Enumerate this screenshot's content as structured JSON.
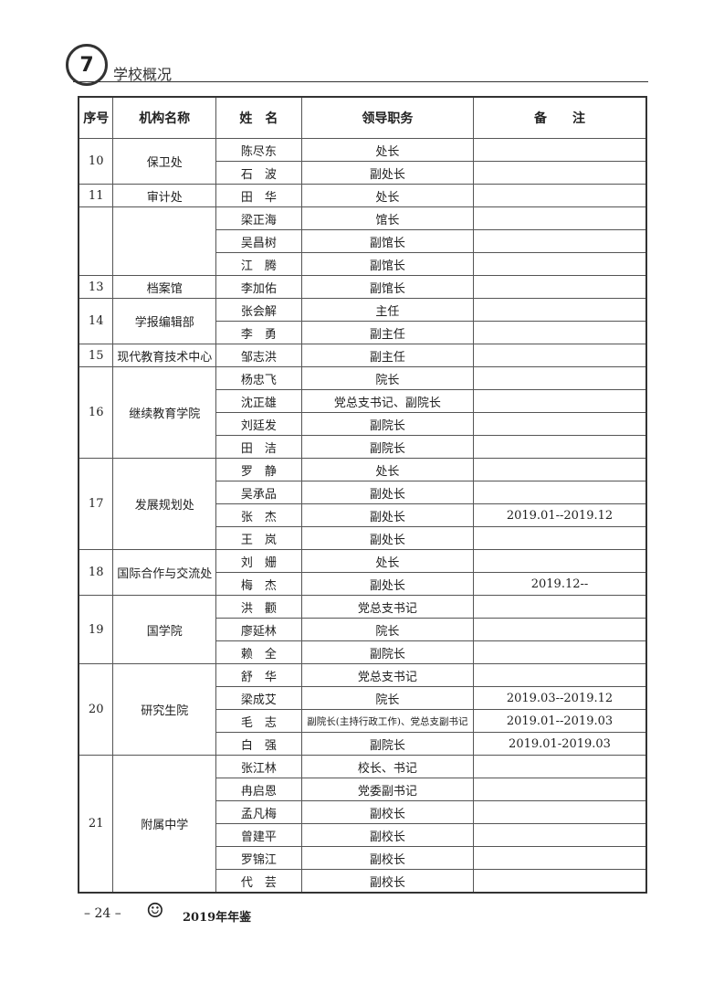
{
  "header": {
    "section": "学校概况"
  },
  "table": {
    "columns": [
      "序号",
      "机构名称",
      "姓　名",
      "领导职务",
      "备　　注"
    ],
    "groups": [
      {
        "no": "10",
        "org": "保卫处",
        "rows": [
          [
            "陈尽东",
            "处长",
            ""
          ],
          [
            "石　波",
            "副处长",
            ""
          ]
        ]
      },
      {
        "no": "11",
        "org": "审计处",
        "rows": [
          [
            "田　华",
            "处长",
            ""
          ]
        ]
      },
      {
        "no": "",
        "org": "",
        "rows": [
          [
            "梁正海",
            "馆长",
            ""
          ],
          [
            "吴昌树",
            "副馆长",
            ""
          ],
          [
            "江　腾",
            "副馆长",
            ""
          ]
        ]
      },
      {
        "no": "13",
        "org": "档案馆",
        "rows": [
          [
            "李加佑",
            "副馆长",
            ""
          ]
        ]
      },
      {
        "no": "14",
        "org": "学报编辑部",
        "rows": [
          [
            "张会解",
            "主任",
            ""
          ],
          [
            "李　勇",
            "副主任",
            ""
          ]
        ]
      },
      {
        "no": "15",
        "org": "现代教育技术中心",
        "rows": [
          [
            "邹志洪",
            "副主任",
            ""
          ]
        ]
      },
      {
        "no": "16",
        "org": "继续教育学院",
        "rows": [
          [
            "杨忠飞",
            "院长",
            ""
          ],
          [
            "沈正雄",
            "党总支书记、副院长",
            ""
          ],
          [
            "刘廷发",
            "副院长",
            ""
          ],
          [
            "田　洁",
            "副院长",
            ""
          ]
        ]
      },
      {
        "no": "17",
        "org": "发展规划处",
        "rows": [
          [
            "罗　静",
            "处长",
            ""
          ],
          [
            "吴承品",
            "副处长",
            ""
          ],
          [
            "张　杰",
            "副处长",
            "2019.01--2019.12"
          ],
          [
            "王　岚",
            "副处长",
            ""
          ]
        ]
      },
      {
        "no": "18",
        "org": "国际合作与交流处",
        "rows": [
          [
            "刘　姗",
            "处长",
            ""
          ],
          [
            "梅　杰",
            "副处长",
            "2019.12--"
          ]
        ]
      },
      {
        "no": "19",
        "org": "国学院",
        "rows": [
          [
            "洪　颧",
            "党总支书记",
            ""
          ],
          [
            "廖延林",
            "院长",
            ""
          ],
          [
            "赖　全",
            "副院长",
            ""
          ]
        ]
      },
      {
        "no": "20",
        "org": "研究生院",
        "rows": [
          [
            "舒　华",
            "党总支书记",
            ""
          ],
          [
            "梁成艾",
            "院长",
            "2019.03--2019.12"
          ],
          [
            "毛　志",
            "副院长(主持行政工作)、党总支副书记",
            "2019.01--2019.03"
          ],
          [
            "白　强",
            "副院长",
            "2019.01-2019.03"
          ]
        ]
      },
      {
        "no": "21",
        "org": "附属中学",
        "rows": [
          [
            "张江林",
            "校长、书记",
            ""
          ],
          [
            "冉启恩",
            "党委副书记",
            ""
          ],
          [
            "孟凡梅",
            "副校长",
            ""
          ],
          [
            "曾建平",
            "副校长",
            ""
          ],
          [
            "罗锦江",
            "副校长",
            ""
          ],
          [
            "代　芸",
            "副校长",
            ""
          ]
        ]
      }
    ]
  },
  "footer": {
    "page": "– 24 –",
    "title": "2019年年鉴"
  }
}
